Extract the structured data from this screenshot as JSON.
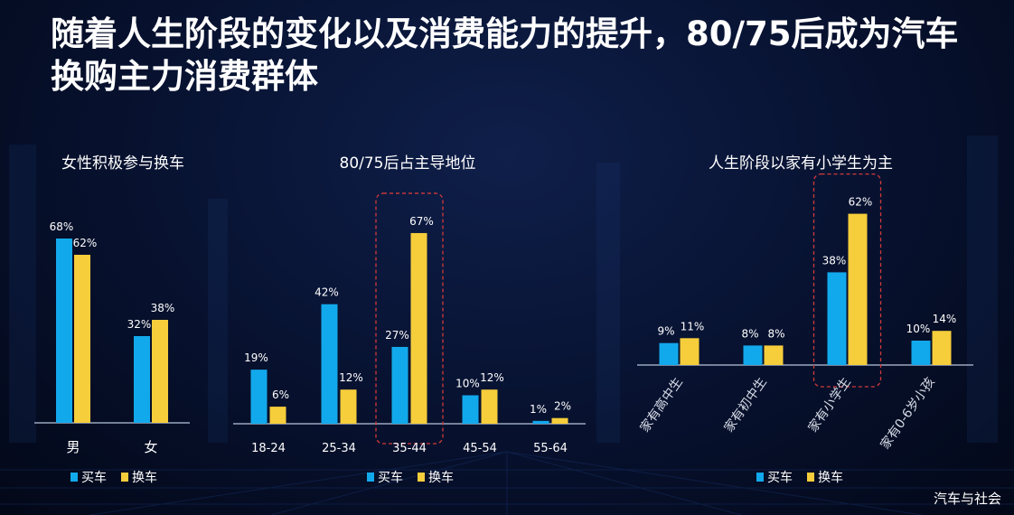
{
  "title": "随着人生阶段的变化以及消费能力的提升，80/75后成为汽车换购主力消费群体",
  "watermark": "汽车与社会",
  "colors": {
    "buy": "#12a9ec",
    "replace": "#f6cd3b",
    "highlight": "#d23a3a",
    "axis": "#9aa7bd"
  },
  "chart_data": [
    {
      "type": "bar",
      "title": "女性积极参与换车",
      "categories": [
        "男",
        "女"
      ],
      "series": [
        {
          "name": "买车",
          "values": [
            68,
            32
          ]
        },
        {
          "name": "换车",
          "values": [
            62,
            38
          ]
        }
      ],
      "ylim": [
        0,
        70
      ],
      "legend": "bottom",
      "highlight_category": null,
      "rotate_labels": false
    },
    {
      "type": "bar",
      "title": "80/75后占主导地位",
      "categories": [
        "18-24",
        "25-34",
        "35-44",
        "45-54",
        "55-64"
      ],
      "series": [
        {
          "name": "买车",
          "values": [
            19,
            42,
            27,
            10,
            1
          ]
        },
        {
          "name": "换车",
          "values": [
            6,
            12,
            67,
            12,
            2
          ]
        }
      ],
      "ylim": [
        0,
        70
      ],
      "legend": "bottom",
      "highlight_category": "35-44",
      "rotate_labels": false
    },
    {
      "type": "bar",
      "title": "人生阶段以家有小学生为主",
      "categories": [
        "家有高中生",
        "家有初中生",
        "家有小学生",
        "家有0-6岁小孩"
      ],
      "series": [
        {
          "name": "买车",
          "values": [
            9,
            8,
            38,
            10
          ]
        },
        {
          "name": "换车",
          "values": [
            11,
            8,
            62,
            14
          ]
        }
      ],
      "ylim": [
        0,
        70
      ],
      "legend": "bottom",
      "highlight_category": "家有小学生",
      "rotate_labels": true
    }
  ]
}
